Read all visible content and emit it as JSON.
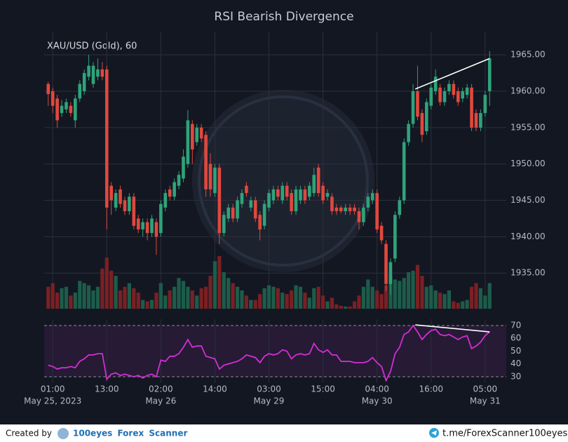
{
  "chart_data": {
    "type": "candlestick",
    "title": "RSI Bearish Divergence",
    "label": "XAU/USD (Gold), 60",
    "up_color": "#2fa37a",
    "down_color": "#e0483e",
    "xlim": [
      -0.9,
      101.7
    ],
    "xticks": [
      {
        "value": 1,
        "label": "01:00",
        "date": "May 25, 2023"
      },
      {
        "value": 13,
        "label": "13:00"
      },
      {
        "value": 25,
        "label": "02:00",
        "date": "May 26"
      },
      {
        "value": 37,
        "label": "14:00"
      },
      {
        "value": 49,
        "label": "03:00",
        "date": "May 29"
      },
      {
        "value": 61,
        "label": "15:00"
      },
      {
        "value": 73,
        "label": "04:00",
        "date": "May 30"
      },
      {
        "value": 85,
        "label": "16:00"
      },
      {
        "value": 97,
        "label": "05:00",
        "date": "May 31"
      }
    ],
    "ylim": [
      1930.1,
      1968.2
    ],
    "yticks": [
      {
        "value": 1935,
        "label": "1935.00"
      },
      {
        "value": 1940,
        "label": "1940.00"
      },
      {
        "value": 1945,
        "label": "1945.00"
      },
      {
        "value": 1950,
        "label": "1950.00"
      },
      {
        "value": 1955,
        "label": "1955.00"
      },
      {
        "value": 1960,
        "label": "1960.00"
      },
      {
        "value": 1965,
        "label": "1965.00"
      }
    ],
    "grid": true,
    "open": [
      1961,
      1960,
      1959,
      1957,
      1957.5,
      1958,
      1956,
      1959,
      1960,
      1962,
      1961,
      1962,
      1963,
      1963,
      1947,
      1944,
      1946.5,
      1945,
      1943.5,
      1945.5,
      1942.5,
      1941,
      1942,
      1940.5,
      1942,
      1940.5,
      1944,
      1946.5,
      1945.5,
      1947,
      1948,
      1950,
      1955.5,
      1953,
      1955,
      1954,
      1950,
      1946,
      1949.5,
      1940.5,
      1942.5,
      1944,
      1942.5,
      1944.5,
      1947,
      1944,
      1945,
      1943,
      1941.5,
      1944,
      1945,
      1946.5,
      1945,
      1947,
      1946,
      1943.5,
      1945,
      1946.5,
      1945.5,
      1946,
      1949.5,
      1947,
      1945.5,
      1945.5,
      1944,
      1944,
      1943.5,
      1944,
      1944,
      1943.5,
      1942,
      1944,
      1945,
      1946,
      1941.5,
      1939,
      1933.5,
      1937,
      1943,
      1945,
      1953,
      1955.5,
      1960,
      1957,
      1954.5,
      1958,
      1960,
      1960.5,
      1958.5,
      1960,
      1961,
      1960,
      1959,
      1959.5,
      1960.5,
      1957,
      1955,
      1957,
      1960
    ],
    "high": [
      1961.3,
      1960.5,
      1959.5,
      1958.8,
      1959,
      1958.5,
      1959.5,
      1961.5,
      1963,
      1965,
      1964,
      1964.5,
      1964,
      1963.5,
      1947.5,
      1946.5,
      1947,
      1945.5,
      1946,
      1946,
      1943,
      1942.5,
      1942.5,
      1943,
      1942.5,
      1945,
      1946.5,
      1947,
      1948,
      1949,
      1952,
      1957.4,
      1956,
      1955.5,
      1955.5,
      1954.5,
      1951.5,
      1950,
      1950,
      1943.5,
      1944.5,
      1944.5,
      1945.5,
      1946.5,
      1947.5,
      1945.5,
      1945.5,
      1943.5,
      1945,
      1946.5,
      1947,
      1947,
      1947.5,
      1947.5,
      1946.5,
      1947,
      1947,
      1947,
      1947.5,
      1949.5,
      1950,
      1947.5,
      1946.5,
      1946,
      1944.5,
      1944.3,
      1944.5,
      1944.5,
      1944.5,
      1944,
      1944.5,
      1946,
      1946.5,
      1946.5,
      1942,
      1939.5,
      1937,
      1943.5,
      1945.5,
      1953.5,
      1956,
      1961,
      1963.5,
      1957.5,
      1959,
      1961,
      1963,
      1961,
      1960.5,
      1961.5,
      1961.5,
      1960.5,
      1960.5,
      1961,
      1961,
      1957.5,
      1957.5,
      1960,
      1965.5
    ],
    "low": [
      1958,
      1957,
      1955,
      1956.5,
      1957,
      1956.5,
      1955,
      1958.5,
      1959.5,
      1961.5,
      1960.5,
      1961.5,
      1961.5,
      1941,
      1943,
      1943.5,
      1944,
      1943,
      1943,
      1941,
      1940.5,
      1940,
      1939.5,
      1940,
      1937.5,
      1940,
      1943.5,
      1945,
      1945,
      1946.5,
      1947.5,
      1949.5,
      1950,
      1952.5,
      1953,
      1945.5,
      1945.5,
      1945.5,
      1939,
      1940,
      1942,
      1942,
      1942,
      1944,
      1945.5,
      1943.5,
      1942,
      1939.5,
      1941,
      1943.5,
      1944.5,
      1945,
      1944.5,
      1945,
      1943,
      1943,
      1944.5,
      1944.5,
      1945,
      1945.5,
      1945.5,
      1944.5,
      1945,
      1943,
      1943,
      1943.2,
      1943,
      1943,
      1943,
      1941,
      1941.5,
      1943.5,
      1944.5,
      1940.5,
      1939,
      1932.5,
      1932,
      1936.5,
      1942.5,
      1944.5,
      1952.5,
      1955,
      1956,
      1953,
      1954,
      1957.5,
      1959.5,
      1958,
      1958,
      1959.5,
      1959,
      1958,
      1958.5,
      1959,
      1954.5,
      1954.5,
      1954.5,
      1956.5,
      1958
    ],
    "close": [
      1959.6,
      1958,
      1956,
      1958,
      1958.5,
      1957,
      1959,
      1961,
      1962.5,
      1963.5,
      1963.5,
      1963,
      1962,
      1944,
      1945,
      1946,
      1944.5,
      1943.5,
      1945.5,
      1941.5,
      1941,
      1942,
      1940.5,
      1942.5,
      1940,
      1944.5,
      1946,
      1945.5,
      1947.5,
      1948.5,
      1951,
      1956,
      1952,
      1955,
      1953.5,
      1946.5,
      1946.5,
      1949.5,
      1940.5,
      1943,
      1944,
      1942.5,
      1945,
      1946,
      1946,
      1945,
      1942.5,
      1941,
      1944.5,
      1946,
      1946.5,
      1945.5,
      1947,
      1945.5,
      1943.5,
      1946.5,
      1946.5,
      1945,
      1947,
      1948.5,
      1946,
      1945,
      1946,
      1943.5,
      1943.5,
      1943.5,
      1944,
      1943.5,
      1943.5,
      1942,
      1944,
      1945.5,
      1946,
      1941,
      1939.5,
      1933.5,
      1936.5,
      1943,
      1945,
      1953,
      1955.5,
      1960,
      1956.5,
      1954,
      1958.5,
      1960.5,
      1962,
      1958.5,
      1960,
      1961,
      1959.5,
      1958.5,
      1960,
      1960.5,
      1955,
      1955,
      1957,
      1959.5,
      1964.5
    ],
    "volume": [
      30,
      35,
      22,
      28,
      30,
      18,
      22,
      38,
      35,
      32,
      25,
      30,
      55,
      70,
      52,
      45,
      25,
      30,
      35,
      28,
      22,
      12,
      10,
      12,
      22,
      35,
      18,
      25,
      30,
      42,
      38,
      30,
      25,
      18,
      28,
      30,
      45,
      65,
      72,
      50,
      42,
      35,
      30,
      25,
      18,
      12,
      12,
      20,
      28,
      32,
      30,
      28,
      22,
      20,
      25,
      32,
      30,
      22,
      15,
      28,
      30,
      18,
      10,
      15,
      6,
      4,
      3,
      3,
      10,
      18,
      30,
      40,
      30,
      25,
      20,
      32,
      45,
      40,
      38,
      42,
      50,
      52,
      60,
      45,
      30,
      32,
      25,
      22,
      20,
      25,
      10,
      8,
      10,
      12,
      30,
      35,
      28,
      18,
      35
    ],
    "volume_up_color": "#1d5c4a",
    "volume_down_color": "#7b2024",
    "divergence": {
      "x": [
        81.5,
        98
      ],
      "y": [
        1960.3,
        1964.5
      ],
      "color": "#ffffff"
    },
    "rsi": {
      "type": "line",
      "color": "#d22fd2",
      "values": [
        39,
        38,
        36,
        37,
        37,
        38,
        37,
        42,
        44,
        47,
        47,
        48,
        48,
        28,
        32,
        33,
        31,
        32,
        31,
        30,
        31,
        29,
        31,
        32,
        30,
        43,
        42,
        46,
        46,
        48,
        53,
        59,
        53,
        54,
        54,
        46,
        45,
        44,
        36,
        39,
        40,
        41,
        42,
        44,
        47,
        46,
        45,
        41,
        46,
        48,
        47,
        48,
        51,
        50,
        44,
        47,
        48,
        47,
        48,
        56,
        51,
        49,
        51,
        47,
        47,
        42,
        42,
        42,
        41,
        41,
        41,
        42,
        45,
        41,
        38,
        27,
        34,
        48,
        53,
        63,
        65,
        70,
        65,
        59,
        63,
        66,
        67,
        63,
        62,
        63,
        61,
        59,
        61,
        62,
        52,
        54,
        57,
        62,
        65
      ],
      "ylim": [
        25.6,
        74.9
      ],
      "yticks": [
        30,
        40,
        50,
        60,
        70
      ],
      "levels": [
        30,
        70
      ],
      "band_color": "#261a35",
      "divergence": {
        "x": [
          81.5,
          98
        ],
        "y": [
          70.5,
          65
        ],
        "color": "#ffffff"
      }
    }
  },
  "footer": {
    "created": "Created by",
    "brand": "100eyes Forex Scanner",
    "link": "t.me/ForexScanner100eyes"
  }
}
